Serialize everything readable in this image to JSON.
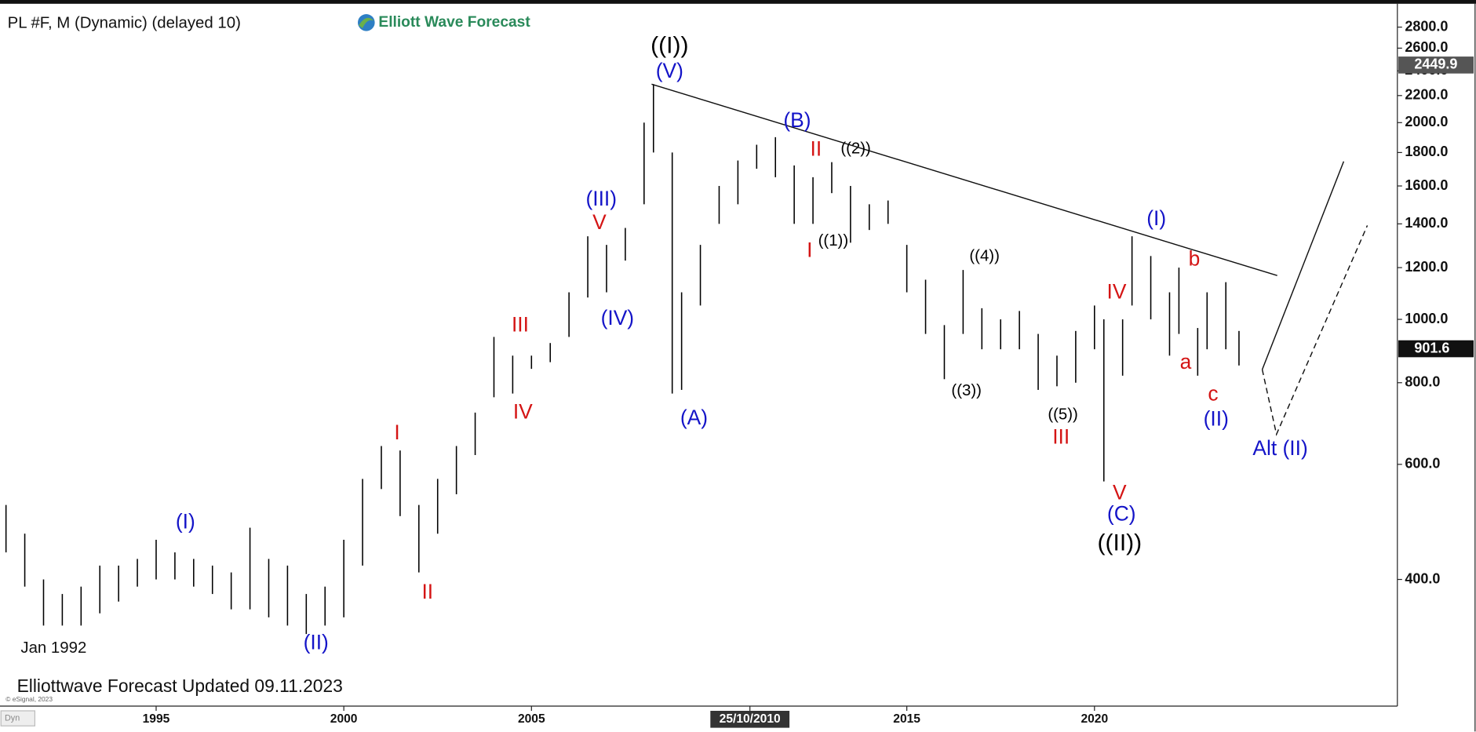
{
  "chart_data": {
    "type": "ohlc",
    "title": "PL #F, M (Dynamic) (delayed 10)",
    "logo": "Elliott Wave Forecast",
    "footer": "Elliottwave Forecast Updated 09.11.2023",
    "copyright": "© eSignal, 2023",
    "corner_label": "Dyn",
    "start_label": "Jan 1992",
    "log_scale": true,
    "color": "#000000",
    "xlim": [
      1990.84,
      2028.07
    ],
    "xticks": [
      1995,
      2000,
      2005,
      {
        "value": 2010.82,
        "label": "25/10/2010"
      },
      2015,
      2020
    ],
    "ylim": [
      256,
      3000
    ],
    "yticks": [
      {
        "value": 400,
        "label": "400.0"
      },
      {
        "value": 600,
        "label": "600.0"
      },
      {
        "value": 800,
        "label": "800.0"
      },
      {
        "value": 1000,
        "label": "1000.0"
      },
      {
        "value": 1200,
        "label": "1200.0"
      },
      {
        "value": 1400,
        "label": "1400.0"
      },
      {
        "value": 1600,
        "label": "1600.0"
      },
      {
        "value": 1800,
        "label": "1800.0"
      },
      {
        "value": 2000,
        "label": "2000.0"
      },
      {
        "value": 2200,
        "label": "2200.0"
      },
      {
        "value": 2400,
        "label": "2400.0"
      },
      {
        "value": 2600,
        "label": "2600.0"
      },
      {
        "value": 2800,
        "label": "2800.0"
      }
    ],
    "price_markers": [
      {
        "value": 2449.9,
        "color": "#555555"
      },
      {
        "value": 901.6,
        "color": "#111111"
      }
    ],
    "x": [
      1991.0,
      1991.5,
      1992.0,
      1992.5,
      1993.0,
      1993.5,
      1994.0,
      1994.5,
      1995.0,
      1995.5,
      1996.0,
      1996.5,
      1997.0,
      1997.5,
      1998.0,
      1998.5,
      1999.0,
      1999.5,
      2000.0,
      2000.5,
      2001.0,
      2001.5,
      2002.0,
      2002.5,
      2003.0,
      2003.5,
      2004.0,
      2004.5,
      2005.0,
      2005.5,
      2006.0,
      2006.5,
      2007.0,
      2007.5,
      2008.0,
      2008.25,
      2008.75,
      2009.0,
      2009.5,
      2010.0,
      2010.5,
      2011.0,
      2011.5,
      2012.0,
      2012.5,
      2013.0,
      2013.5,
      2014.0,
      2014.5,
      2015.0,
      2015.5,
      2016.0,
      2016.5,
      2017.0,
      2017.5,
      2018.0,
      2018.5,
      2019.0,
      2019.5,
      2020.0,
      2020.25,
      2020.75,
      2021.0,
      2021.5,
      2022.0,
      2022.25,
      2022.75,
      2023.0,
      2023.5,
      2023.85
    ],
    "high": [
      520,
      470,
      400,
      380,
      390,
      420,
      420,
      430,
      460,
      440,
      430,
      420,
      410,
      480,
      430,
      420,
      380,
      390,
      460,
      570,
      640,
      630,
      520,
      570,
      640,
      720,
      940,
      880,
      880,
      920,
      1100,
      1340,
      1300,
      1380,
      2000,
      2290,
      1800,
      1100,
      1300,
      1600,
      1750,
      1850,
      1900,
      1720,
      1650,
      1740,
      1600,
      1500,
      1520,
      1300,
      1150,
      980,
      1190,
      1040,
      1000,
      1030,
      950,
      880,
      960,
      1050,
      1000,
      1000,
      1340,
      1250,
      1100,
      1200,
      970,
      1100,
      1140,
      960
    ],
    "low": [
      440,
      390,
      340,
      340,
      340,
      355,
      370,
      390,
      400,
      400,
      390,
      380,
      360,
      360,
      350,
      340,
      330,
      340,
      350,
      420,
      550,
      500,
      410,
      470,
      540,
      620,
      760,
      770,
      840,
      860,
      940,
      1080,
      1100,
      1230,
      1500,
      1800,
      770,
      780,
      1050,
      1400,
      1500,
      1700,
      1650,
      1400,
      1400,
      1560,
      1310,
      1370,
      1400,
      1100,
      950,
      810,
      950,
      900,
      900,
      900,
      780,
      790,
      800,
      900,
      565,
      820,
      1050,
      1000,
      880,
      950,
      820,
      900,
      900,
      850
    ],
    "lines": [
      {
        "style": "solid",
        "x": [
          2008.2,
          2024.87
        ],
        "y": [
          2290,
          1167
        ]
      },
      {
        "style": "solid",
        "x": [
          2024.47,
          2026.64
        ],
        "y": [
          838,
          1744
        ]
      },
      {
        "style": "dashed",
        "x": [
          2024.47,
          2024.85,
          2027.27
        ],
        "y": [
          838,
          667,
          1392
        ]
      }
    ],
    "annotations": [
      {
        "text": "(I)",
        "x": 1995.78,
        "y": 488,
        "color": "#1414c8"
      },
      {
        "text": "(II)",
        "x": 1999.26,
        "y": 319,
        "color": "#1414c8"
      },
      {
        "text": "I",
        "x": 2001.42,
        "y": 668,
        "color": "#d41414"
      },
      {
        "text": "II",
        "x": 2002.23,
        "y": 381,
        "color": "#d41414"
      },
      {
        "text": "III",
        "x": 2004.7,
        "y": 977,
        "color": "#d41414"
      },
      {
        "text": "IV",
        "x": 2004.77,
        "y": 719,
        "color": "#d41414"
      },
      {
        "text": "(III)",
        "x": 2006.86,
        "y": 1522,
        "color": "#1414c8"
      },
      {
        "text": "V",
        "x": 2006.81,
        "y": 1401,
        "color": "#d41414"
      },
      {
        "text": "(IV)",
        "x": 2007.29,
        "y": 1000,
        "color": "#1414c8"
      },
      {
        "text": "((I))",
        "x": 2008.68,
        "y": 2614,
        "color": "#000000"
      },
      {
        "text": "(V)",
        "x": 2008.68,
        "y": 2389,
        "color": "#1414c8"
      },
      {
        "text": "(A)",
        "x": 2009.33,
        "y": 704,
        "color": "#1414c8"
      },
      {
        "text": "(B)",
        "x": 2012.08,
        "y": 2006,
        "color": "#1414c8"
      },
      {
        "text": "II",
        "x": 2012.58,
        "y": 1815,
        "color": "#d41414"
      },
      {
        "text": "I",
        "x": 2012.41,
        "y": 1270,
        "color": "#d41414"
      },
      {
        "text": "((1))",
        "x": 2013.04,
        "y": 1316,
        "color": "#000000"
      },
      {
        "text": "((2))",
        "x": 2013.64,
        "y": 1821,
        "color": "#000000"
      },
      {
        "text": "((4))",
        "x": 2017.07,
        "y": 1248,
        "color": "#000000"
      },
      {
        "text": "((3))",
        "x": 2016.59,
        "y": 776,
        "color": "#000000"
      },
      {
        "text": "((5))",
        "x": 2019.16,
        "y": 714,
        "color": "#000000"
      },
      {
        "text": "III",
        "x": 2019.11,
        "y": 658,
        "color": "#d41414"
      },
      {
        "text": "IV",
        "x": 2020.59,
        "y": 1097,
        "color": "#d41414"
      },
      {
        "text": "V",
        "x": 2020.67,
        "y": 541,
        "color": "#d41414"
      },
      {
        "text": "(C)",
        "x": 2020.72,
        "y": 502,
        "color": "#1414c8"
      },
      {
        "text": "((II))",
        "x": 2020.67,
        "y": 453,
        "color": "#000000"
      },
      {
        "text": "(I)",
        "x": 2021.65,
        "y": 1420,
        "color": "#1414c8"
      },
      {
        "text": "b",
        "x": 2022.66,
        "y": 1232,
        "color": "#d41414"
      },
      {
        "text": "a",
        "x": 2022.43,
        "y": 857,
        "color": "#d41414"
      },
      {
        "text": "c",
        "x": 2023.16,
        "y": 766,
        "color": "#d41414"
      },
      {
        "text": "(II)",
        "x": 2023.24,
        "y": 701,
        "color": "#1414c8"
      },
      {
        "text": "Alt (II)",
        "x": 2024.95,
        "y": 632,
        "color": "#1414c8"
      }
    ]
  }
}
